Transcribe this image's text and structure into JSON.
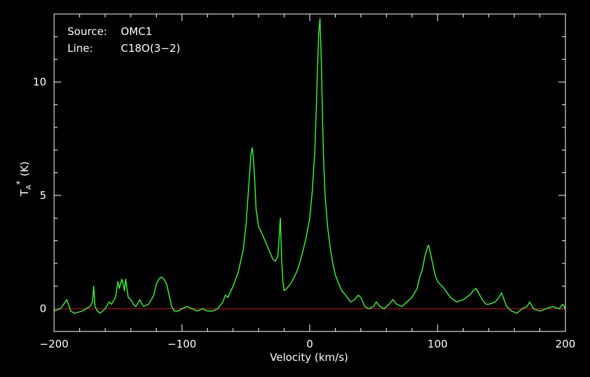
{
  "chart_data": {
    "type": "line",
    "background": "#000000",
    "xlabel": "Velocity (km/s)",
    "ylabel_main": "T",
    "ylabel_sub": "A",
    "ylabel_sup": "*",
    "ylabel_unit": "(K)",
    "xlim": [
      -200,
      200
    ],
    "ylim": [
      -1,
      13
    ],
    "xticks": [
      -200,
      -100,
      0,
      100,
      200
    ],
    "xtick_labels": [
      "−200",
      "−100",
      "0",
      "100",
      "200"
    ],
    "yticks": [
      0,
      5,
      10
    ],
    "ytick_labels": [
      "0",
      "5",
      "10"
    ],
    "annotations": {
      "source_label": "Source:",
      "source_value": "OMC1",
      "line_label": "Line:",
      "line_value": "C18O(3−2)"
    },
    "series": [
      {
        "color": "#33ff33",
        "x": [
          -200,
          -195,
          -190,
          -187,
          -184,
          -178,
          -172,
          -170,
          -169,
          -168,
          -166,
          -164,
          -160,
          -157,
          -155,
          -152,
          -150,
          -149,
          -147,
          -146,
          -145,
          -144,
          -142,
          -140,
          -138,
          -136,
          -133,
          -130,
          -126,
          -122,
          -120,
          -118,
          -116,
          -114,
          -112,
          -110,
          -108,
          -106,
          -103,
          -100,
          -96,
          -92,
          -88,
          -84,
          -80,
          -76,
          -72,
          -68,
          -66,
          -64,
          -60,
          -56,
          -52,
          -50,
          -48,
          -46,
          -45,
          -44,
          -43,
          -42,
          -40,
          -38,
          -35,
          -32,
          -29,
          -27,
          -25,
          -24,
          -23,
          -22,
          -21,
          -20,
          -18,
          -15,
          -12,
          -9,
          -6,
          -3,
          0,
          2,
          4,
          5,
          6,
          7,
          8,
          9,
          10,
          11,
          12,
          14,
          16,
          18,
          20,
          22,
          25,
          28,
          32,
          35,
          38,
          40,
          43,
          46,
          50,
          52,
          55,
          58,
          62,
          65,
          68,
          72,
          76,
          80,
          84,
          86,
          88,
          90,
          92,
          93,
          95,
          98,
          100,
          105,
          110,
          115,
          120,
          125,
          128,
          130,
          132,
          135,
          138,
          140,
          145,
          148,
          150,
          152,
          154,
          158,
          162,
          166,
          170,
          172,
          175,
          180,
          185,
          190,
          195,
          198,
          200
        ],
        "y": [
          -0.1,
          0.0,
          0.4,
          -0.1,
          -0.2,
          -0.1,
          0.1,
          0.3,
          1.0,
          0.1,
          -0.1,
          -0.2,
          0.0,
          0.3,
          0.2,
          0.5,
          1.2,
          0.9,
          1.3,
          1.1,
          0.8,
          1.3,
          0.5,
          0.4,
          0.2,
          0.1,
          0.4,
          0.1,
          0.2,
          0.6,
          1.1,
          1.3,
          1.4,
          1.3,
          1.1,
          0.6,
          0.1,
          -0.1,
          -0.1,
          0.0,
          0.1,
          0.0,
          -0.1,
          0.0,
          -0.1,
          -0.1,
          0.0,
          0.3,
          0.6,
          0.5,
          1.0,
          1.6,
          2.6,
          3.6,
          5.2,
          6.8,
          7.1,
          6.6,
          5.6,
          4.4,
          3.6,
          3.4,
          3.0,
          2.6,
          2.2,
          2.1,
          2.3,
          3.1,
          4.0,
          2.2,
          1.2,
          0.8,
          0.9,
          1.1,
          1.4,
          1.8,
          2.4,
          3.1,
          4.0,
          5.2,
          7.0,
          8.6,
          10.5,
          12.1,
          12.8,
          11.0,
          8.4,
          6.3,
          5.0,
          3.6,
          2.7,
          2.0,
          1.5,
          1.2,
          0.8,
          0.6,
          0.3,
          0.4,
          0.6,
          0.5,
          0.1,
          0.0,
          0.1,
          0.3,
          0.1,
          0.0,
          0.2,
          0.4,
          0.2,
          0.1,
          0.3,
          0.5,
          0.9,
          1.4,
          1.7,
          2.3,
          2.7,
          2.8,
          2.3,
          1.5,
          1.2,
          0.9,
          0.5,
          0.3,
          0.4,
          0.6,
          0.8,
          0.9,
          0.7,
          0.4,
          0.2,
          0.2,
          0.3,
          0.5,
          0.7,
          0.4,
          0.1,
          -0.1,
          -0.2,
          0.0,
          0.1,
          0.3,
          0.0,
          -0.1,
          0.0,
          0.1,
          0.0,
          0.2,
          0.0
        ]
      }
    ],
    "baseline": {
      "y": 0,
      "color": "#cc1111"
    }
  }
}
